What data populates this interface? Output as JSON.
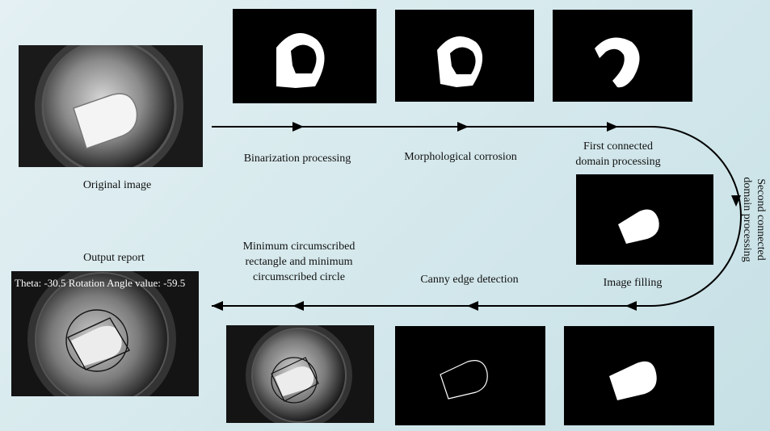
{
  "steps": {
    "original": "Original image",
    "binarization": "Binarization processing",
    "morphological": "Morphological corrosion",
    "first_domain": "First connected\ndomain processing",
    "second_domain": "Second connected\ndomain processing",
    "filling": "Image filling",
    "canny": "Canny edge detection",
    "min_shapes": "Minimum circumscribed\nrectangle and minimum\ncircumscribed circle",
    "output": "Output report"
  },
  "report_overlay": "Theta: -30.5  Rotation Angle value: -59.5"
}
